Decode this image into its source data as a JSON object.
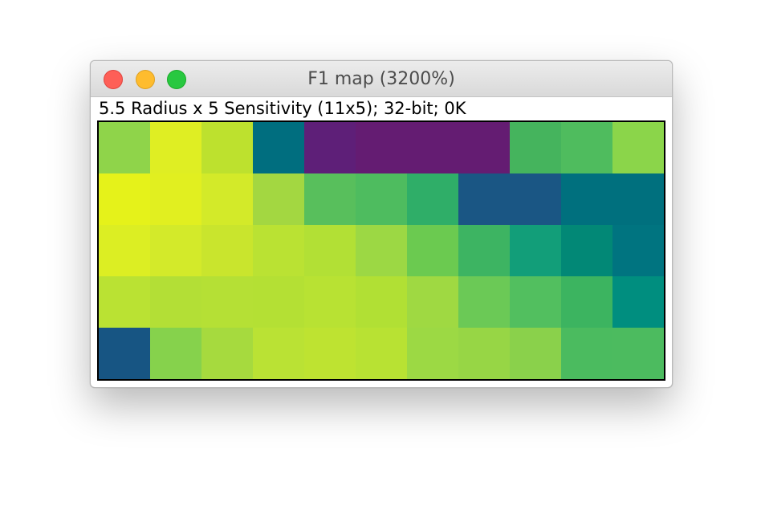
{
  "window": {
    "title": "F1 map (3200%)",
    "info": "5.5 Radius x 5 Sensitivity (11x5); 32-bit; 0K"
  },
  "controls": {
    "close_icon": "close-icon",
    "minimize_icon": "minimize-icon",
    "zoom_icon": "zoom-icon"
  },
  "image": {
    "columns": 11,
    "rows": 5,
    "pixels": [
      [
        "#8fd44a",
        "#dfee23",
        "#bde12e",
        "#006e7f",
        "#5e1f78",
        "#641c72",
        "#641c72",
        "#641c72",
        "#45b45d",
        "#4fbc5e",
        "#8bd54a"
      ],
      [
        "#e5f21a",
        "#e1ef20",
        "#d3ea29",
        "#a3d741",
        "#58bf5c",
        "#4ebc5f",
        "#2fae68",
        "#1a5684",
        "#1a5684",
        "#00707e",
        "#00707e"
      ],
      [
        "#dcee23",
        "#d3ea2a",
        "#c9e52d",
        "#bae233",
        "#b2e035",
        "#9cd844",
        "#6bca50",
        "#3db462",
        "#129e79",
        "#028876",
        "#007480"
      ],
      [
        "#bae233",
        "#b3df36",
        "#b5e035",
        "#b4e034",
        "#b8e233",
        "#b1e034",
        "#9fd942",
        "#6bc956",
        "#52bf5f",
        "#3cb460",
        "#008e7f"
      ],
      [
        "#175583",
        "#86d24c",
        "#a6da3e",
        "#bae234",
        "#bee331",
        "#b8e233",
        "#9cd944",
        "#97d645",
        "#8ad14b",
        "#4bbb5f",
        "#4cbb5f"
      ]
    ]
  }
}
